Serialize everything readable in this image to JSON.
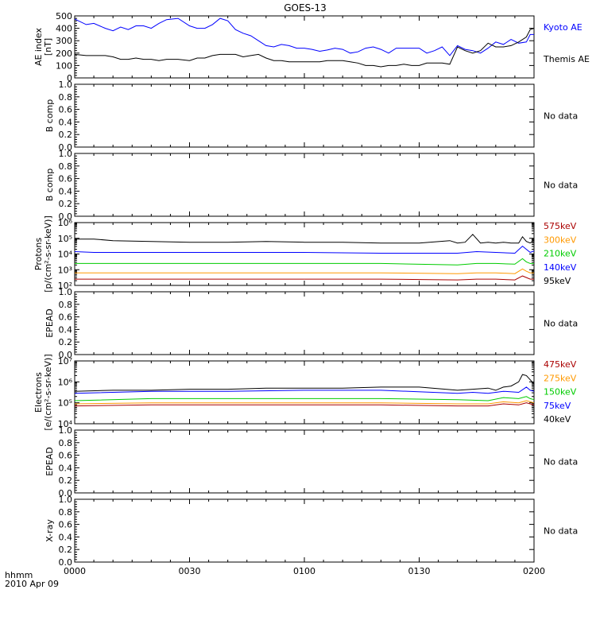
{
  "title": "GOES-13",
  "time_axis": {
    "label_top": "hhmm",
    "label_bottom": "2010 Apr 09",
    "ticks": [
      "0000",
      "0030",
      "0100",
      "0130",
      "0200"
    ],
    "xlim_minutes": [
      0,
      120
    ]
  },
  "no_data_text": "No data",
  "chart_data": [
    {
      "type": "line",
      "panel": "ae",
      "ylabel_lines": [
        "AE index",
        "[nT]"
      ],
      "ylim": [
        0,
        500
      ],
      "yticks": [
        "0",
        "100",
        "200",
        "300",
        "400",
        "500"
      ],
      "series": [
        {
          "name": "Kyoto AE",
          "color": "#0000ff",
          "x": [
            0,
            3,
            5,
            8,
            10,
            12,
            14,
            16,
            18,
            20,
            22,
            24,
            27,
            30,
            32,
            34,
            36,
            38,
            40,
            42,
            44,
            46,
            48,
            50,
            52,
            54,
            56,
            58,
            60,
            62,
            64,
            66,
            68,
            70,
            72,
            74,
            76,
            78,
            80,
            82,
            84,
            86,
            88,
            90,
            92,
            94,
            96,
            98,
            100,
            102,
            104,
            106,
            108,
            110,
            112,
            114,
            116,
            118,
            119,
            120
          ],
          "y": [
            475,
            430,
            440,
            400,
            380,
            410,
            390,
            420,
            420,
            400,
            440,
            470,
            480,
            420,
            400,
            400,
            430,
            480,
            460,
            390,
            360,
            340,
            300,
            260,
            250,
            270,
            260,
            240,
            240,
            230,
            215,
            225,
            240,
            230,
            200,
            210,
            240,
            250,
            230,
            200,
            240,
            240,
            240,
            240,
            200,
            220,
            250,
            180,
            260,
            230,
            220,
            200,
            240,
            290,
            270,
            310,
            280,
            290,
            350,
            350
          ]
        },
        {
          "name": "Themis AE",
          "color": "#000000",
          "x": [
            0,
            3,
            5,
            8,
            10,
            12,
            14,
            16,
            18,
            20,
            22,
            24,
            27,
            30,
            32,
            34,
            36,
            38,
            40,
            42,
            44,
            46,
            48,
            50,
            52,
            54,
            56,
            58,
            60,
            62,
            64,
            66,
            68,
            70,
            72,
            74,
            76,
            78,
            80,
            82,
            84,
            86,
            88,
            90,
            92,
            94,
            96,
            98,
            100,
            102,
            104,
            106,
            108,
            110,
            112,
            114,
            116,
            118,
            119,
            120
          ],
          "y": [
            190,
            180,
            180,
            180,
            170,
            150,
            150,
            160,
            150,
            150,
            140,
            150,
            150,
            140,
            160,
            160,
            180,
            190,
            190,
            190,
            170,
            180,
            190,
            160,
            140,
            140,
            130,
            130,
            130,
            130,
            130,
            140,
            140,
            140,
            130,
            120,
            100,
            100,
            90,
            100,
            100,
            110,
            100,
            100,
            120,
            120,
            120,
            110,
            250,
            220,
            200,
            220,
            280,
            250,
            250,
            260,
            290,
            330,
            390,
            400
          ]
        }
      ]
    },
    {
      "type": "line",
      "panel": "empty",
      "ylabel_lines": [
        "B comp"
      ],
      "ylim": [
        0,
        1
      ],
      "yticks": [
        "0.0",
        "0.2",
        "0.4",
        "0.6",
        "0.8",
        "1.0"
      ],
      "series": [],
      "no_data": true
    },
    {
      "type": "line",
      "panel": "empty",
      "ylabel_lines": [
        "B comp"
      ],
      "ylim": [
        0,
        1
      ],
      "yticks": [
        "0.0",
        "0.2",
        "0.4",
        "0.6",
        "0.8",
        "1.0"
      ],
      "series": [],
      "no_data": true
    },
    {
      "type": "line",
      "panel": "log",
      "ylabel_lines": [
        "Protons",
        "[p/(cm²-s-sr-keV)]"
      ],
      "log_scale": true,
      "ylim_exp": [
        2,
        6
      ],
      "yticks": [
        "10²",
        "10³",
        "10⁴",
        "10⁵",
        "10⁶"
      ],
      "series": [
        {
          "name": "575keV",
          "color": "#aa0000",
          "x": [
            0,
            20,
            40,
            60,
            80,
            100,
            105,
            110,
            115,
            117,
            118,
            119,
            120
          ],
          "y": [
            2.4,
            2.4,
            2.4,
            2.4,
            2.4,
            2.35,
            2.4,
            2.4,
            2.35,
            2.6,
            2.5,
            2.4,
            2.4
          ]
        },
        {
          "name": "300keV",
          "color": "#ff9900",
          "x": [
            0,
            20,
            40,
            60,
            80,
            100,
            105,
            110,
            115,
            117,
            118,
            119,
            120
          ],
          "y": [
            2.8,
            2.8,
            2.8,
            2.8,
            2.8,
            2.75,
            2.8,
            2.8,
            2.75,
            3.05,
            2.9,
            2.8,
            2.8
          ]
        },
        {
          "name": "210keV",
          "color": "#00cc00",
          "x": [
            0,
            20,
            40,
            60,
            80,
            100,
            105,
            110,
            115,
            117,
            118,
            119,
            120
          ],
          "y": [
            3.4,
            3.4,
            3.4,
            3.4,
            3.4,
            3.3,
            3.4,
            3.4,
            3.35,
            3.7,
            3.5,
            3.4,
            3.4
          ]
        },
        {
          "name": "140keV",
          "color": "#0000ff",
          "x": [
            0,
            5,
            20,
            40,
            60,
            80,
            100,
            105,
            110,
            115,
            117,
            118,
            119,
            120
          ],
          "y": [
            4.15,
            4.1,
            4.1,
            4.1,
            4.1,
            4.05,
            4.05,
            4.15,
            4.1,
            4.05,
            4.5,
            4.3,
            4.1,
            4.2
          ]
        },
        {
          "name": "95keV",
          "color": "#000000",
          "x": [
            0,
            5,
            10,
            20,
            30,
            40,
            50,
            60,
            70,
            80,
            90,
            98,
            100,
            102,
            104,
            106,
            108,
            110,
            112,
            114,
            116,
            117,
            118,
            119,
            120
          ],
          "y": [
            4.95,
            4.95,
            4.85,
            4.8,
            4.75,
            4.75,
            4.8,
            4.75,
            4.75,
            4.7,
            4.7,
            4.85,
            4.7,
            4.75,
            5.25,
            4.7,
            4.75,
            4.7,
            4.75,
            4.7,
            4.7,
            5.1,
            4.8,
            4.7,
            4.9
          ]
        }
      ]
    },
    {
      "type": "line",
      "panel": "empty",
      "ylabel_lines": [
        "EPEAD"
      ],
      "ylim": [
        0,
        1
      ],
      "yticks": [
        "0.0",
        "0.2",
        "0.4",
        "0.6",
        "0.8",
        "1.0"
      ],
      "series": [],
      "no_data": true
    },
    {
      "type": "line",
      "panel": "log",
      "ylabel_lines": [
        "Electrons",
        "[e/(cm²-s-sr-keV)]"
      ],
      "log_scale": true,
      "ylim_exp": [
        4,
        7
      ],
      "yticks": [
        "10⁴",
        "10⁵",
        "10⁶",
        "10⁷"
      ],
      "series": [
        {
          "name": "475keV",
          "color": "#aa0000",
          "x": [
            0,
            20,
            40,
            60,
            80,
            100,
            108,
            112,
            116,
            118,
            119,
            120
          ],
          "y": [
            4.85,
            4.9,
            4.9,
            4.9,
            4.9,
            4.85,
            4.85,
            4.95,
            4.9,
            5.0,
            4.95,
            4.9
          ]
        },
        {
          "name": "275keV",
          "color": "#ff9900",
          "x": [
            0,
            20,
            40,
            60,
            80,
            100,
            108,
            112,
            116,
            118,
            119,
            120
          ],
          "y": [
            4.95,
            5.0,
            5.0,
            5.0,
            5.0,
            4.95,
            4.95,
            5.05,
            5.0,
            5.1,
            5.05,
            5.0
          ]
        },
        {
          "name": "150keV",
          "color": "#00cc00",
          "x": [
            0,
            20,
            40,
            60,
            80,
            100,
            108,
            112,
            116,
            118,
            119,
            120
          ],
          "y": [
            5.1,
            5.2,
            5.2,
            5.2,
            5.2,
            5.15,
            5.1,
            5.25,
            5.2,
            5.3,
            5.2,
            5.15
          ]
        },
        {
          "name": "75keV",
          "color": "#0000ff",
          "x": [
            0,
            20,
            40,
            60,
            80,
            100,
            104,
            108,
            112,
            116,
            118,
            119,
            120
          ],
          "y": [
            5.45,
            5.55,
            5.55,
            5.6,
            5.6,
            5.45,
            5.5,
            5.45,
            5.55,
            5.5,
            5.75,
            5.6,
            5.55
          ]
        },
        {
          "name": "40keV",
          "color": "#000000",
          "x": [
            0,
            10,
            20,
            30,
            40,
            50,
            60,
            70,
            80,
            90,
            100,
            104,
            108,
            110,
            112,
            114,
            116,
            117,
            118,
            119,
            120
          ],
          "y": [
            5.55,
            5.6,
            5.6,
            5.65,
            5.65,
            5.7,
            5.7,
            5.7,
            5.75,
            5.75,
            5.6,
            5.65,
            5.7,
            5.6,
            5.75,
            5.8,
            6.0,
            6.35,
            6.3,
            6.1,
            5.9
          ]
        }
      ]
    },
    {
      "type": "line",
      "panel": "empty",
      "ylabel_lines": [
        "EPEAD"
      ],
      "ylim": [
        0,
        1
      ],
      "yticks": [
        "0.0",
        "0.2",
        "0.4",
        "0.6",
        "0.8",
        "1.0"
      ],
      "series": [],
      "no_data": true
    },
    {
      "type": "line",
      "panel": "empty",
      "ylabel_lines": [
        "X-ray"
      ],
      "ylim": [
        0,
        1
      ],
      "yticks": [
        "0.0",
        "0.2",
        "0.4",
        "0.6",
        "0.8",
        "1.0"
      ],
      "series": [],
      "no_data": true
    }
  ]
}
